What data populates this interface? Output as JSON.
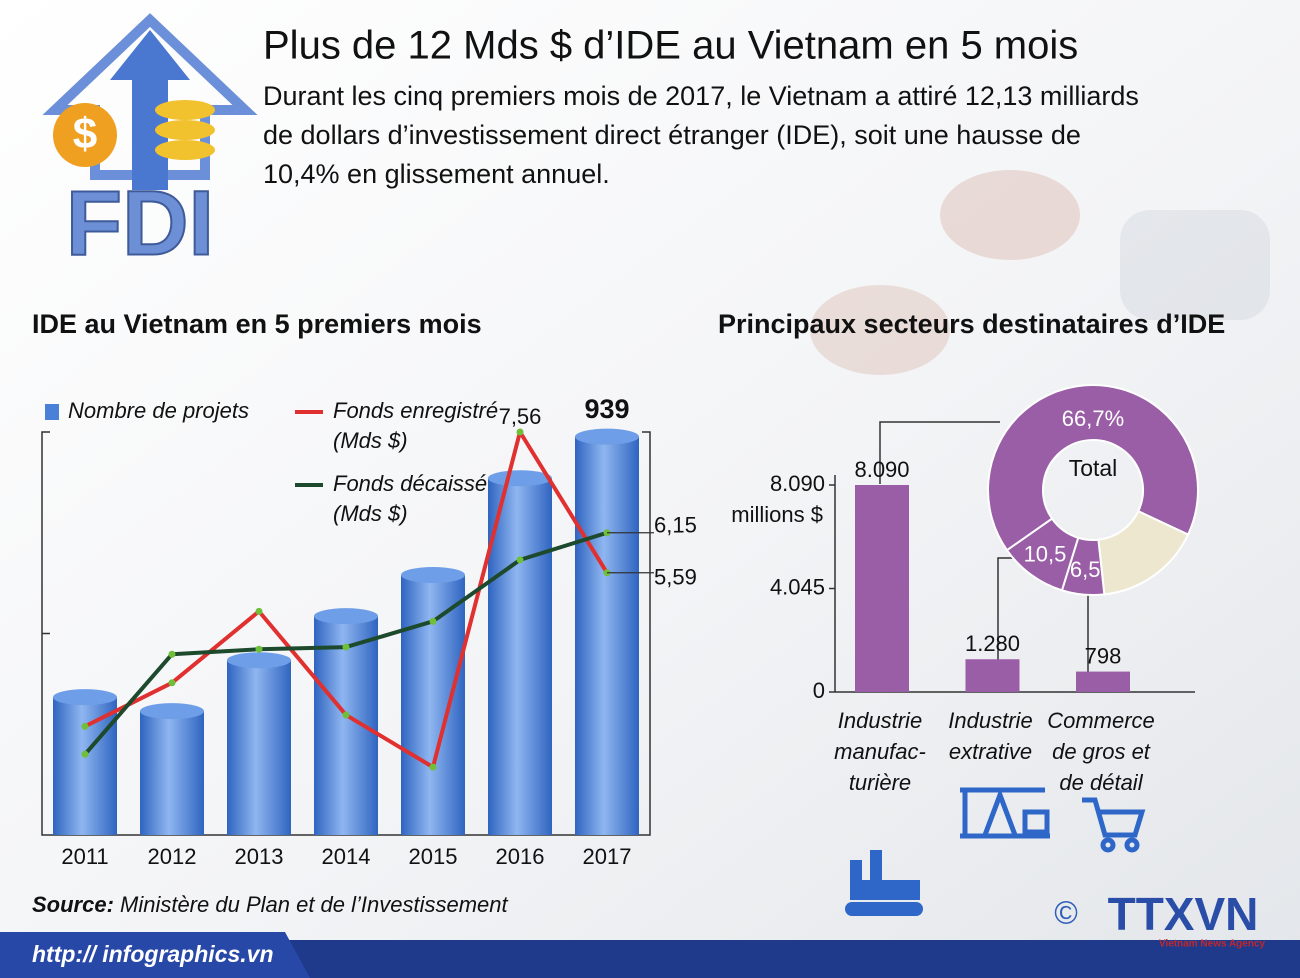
{
  "header": {
    "title": "Plus de 12 Mds $ d’IDE au Vietnam en 5 mois",
    "subtitle": [
      "Durant les cinq premiers mois de 2017, le Vietnam a attiré 12,13 milliards",
      "de dollars d’investissement direct étranger (IDE), soit une hausse de",
      "10,4% en glissement annuel."
    ],
    "logo": "FDI"
  },
  "chart_data": [
    {
      "type": "combo",
      "title": "IDE au Vietnam en 5 premiers mois",
      "categories": [
        "2011",
        "2012",
        "2013",
        "2014",
        "2015",
        "2016",
        "2017"
      ],
      "ylim": [
        0,
        950
      ],
      "y2lim": [
        1.92,
        7.56
      ],
      "series": [
        {
          "name": [
            "Nombre de projets"
          ],
          "type": "bar",
          "color": "#4a80d8",
          "values": [
            325,
            292,
            412,
            516,
            613,
            841,
            939
          ],
          "value_labels": [
            null,
            null,
            null,
            null,
            null,
            null,
            "939"
          ]
        },
        {
          "name": [
            "Fonds enregistré",
            "(Mds $)"
          ],
          "type": "line",
          "axis": "y2",
          "color": "#e0302f",
          "values": [
            3.44,
            4.05,
            5.05,
            3.6,
            2.87,
            7.56,
            5.59
          ],
          "value_labels": [
            null,
            null,
            null,
            null,
            null,
            "7,56",
            "5,59"
          ]
        },
        {
          "name": [
            "Fonds décaissé",
            "(Mds $)"
          ],
          "type": "line",
          "axis": "y2",
          "color": "#1d4a2c",
          "values": [
            3.05,
            4.45,
            4.52,
            4.55,
            4.91,
            5.77,
            6.15
          ],
          "value_labels": [
            null,
            null,
            null,
            null,
            null,
            null,
            "6,15"
          ]
        }
      ]
    },
    {
      "type": "bar",
      "title": "Principaux secteurs destinataires d’IDE",
      "ylabel": "millions $",
      "categories": [
        [
          "Industrie",
          "manufac-",
          "turière"
        ],
        [
          "Industrie",
          "extrative"
        ],
        [
          "Commerce",
          "de gros et",
          "de détail"
        ]
      ],
      "values": [
        8090,
        1280,
        798
      ],
      "value_labels": [
        "8.090",
        "1.280",
        "798"
      ],
      "color": "#9a5ea6",
      "ylim": [
        0,
        8090
      ],
      "yticks": [
        0,
        {
          "value": 4045,
          "label": "4.045"
        },
        {
          "value": 8090,
          "label": "8.090"
        }
      ]
    },
    {
      "type": "pie",
      "title": "Total",
      "values": [
        66.7,
        16.3,
        6.5,
        10.5
      ],
      "value_labels": [
        "66,7%",
        null,
        "6,5",
        "10,5"
      ],
      "colors": [
        "#9a5ea6",
        "#ede7d0",
        "#9a5ea6",
        "#9a5ea6"
      ]
    }
  ],
  "source": {
    "label": "Source:",
    "text": "Ministère du Plan et de l’Investissement"
  },
  "footer": {
    "url": "http:// infographics.vn",
    "copyright": "©",
    "agency": "TTXVN",
    "agency_sub": "Vietnam News Agency"
  }
}
